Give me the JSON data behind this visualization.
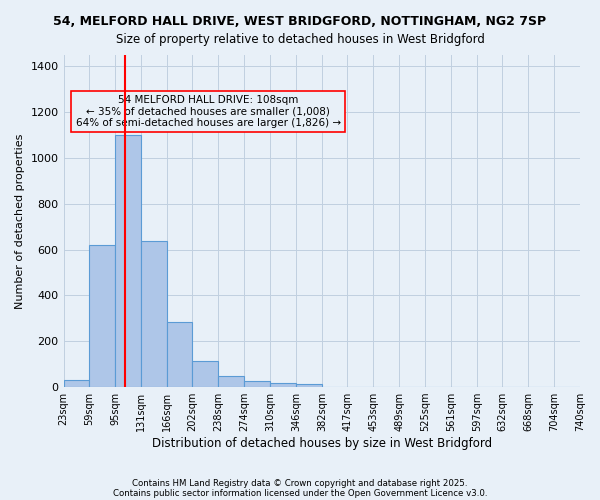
{
  "title_line1": "54, MELFORD HALL DRIVE, WEST BRIDGFORD, NOTTINGHAM, NG2 7SP",
  "title_line2": "Size of property relative to detached houses in West Bridgford",
  "xlabel": "Distribution of detached houses by size in West Bridgford",
  "ylabel": "Number of detached properties",
  "annotation_line1": "54 MELFORD HALL DRIVE: 108sqm",
  "annotation_line2": "← 35% of detached houses are smaller (1,008)",
  "annotation_line3": "64% of semi-detached houses are larger (1,826) →",
  "property_size_sqm": 108,
  "bin_edges": [
    23,
    59,
    95,
    131,
    166,
    202,
    238,
    274,
    310,
    346,
    382,
    417,
    453,
    489,
    525,
    561,
    597,
    632,
    668,
    704,
    740
  ],
  "bin_counts": [
    30,
    620,
    1100,
    640,
    285,
    115,
    50,
    25,
    20,
    15,
    0,
    0,
    0,
    0,
    0,
    0,
    0,
    0,
    0,
    0
  ],
  "bar_color": "#aec6e8",
  "bar_edge_color": "#5b9bd5",
  "red_line_color": "#ff0000",
  "background_color": "#e8f0f8",
  "grid_color": "#c0cfe0",
  "ylim": [
    0,
    1450
  ],
  "yticks": [
    0,
    200,
    400,
    600,
    800,
    1000,
    1200,
    1400
  ],
  "footnote1": "Contains HM Land Registry data © Crown copyright and database right 2025.",
  "footnote2": "Contains public sector information licensed under the Open Government Licence v3.0."
}
